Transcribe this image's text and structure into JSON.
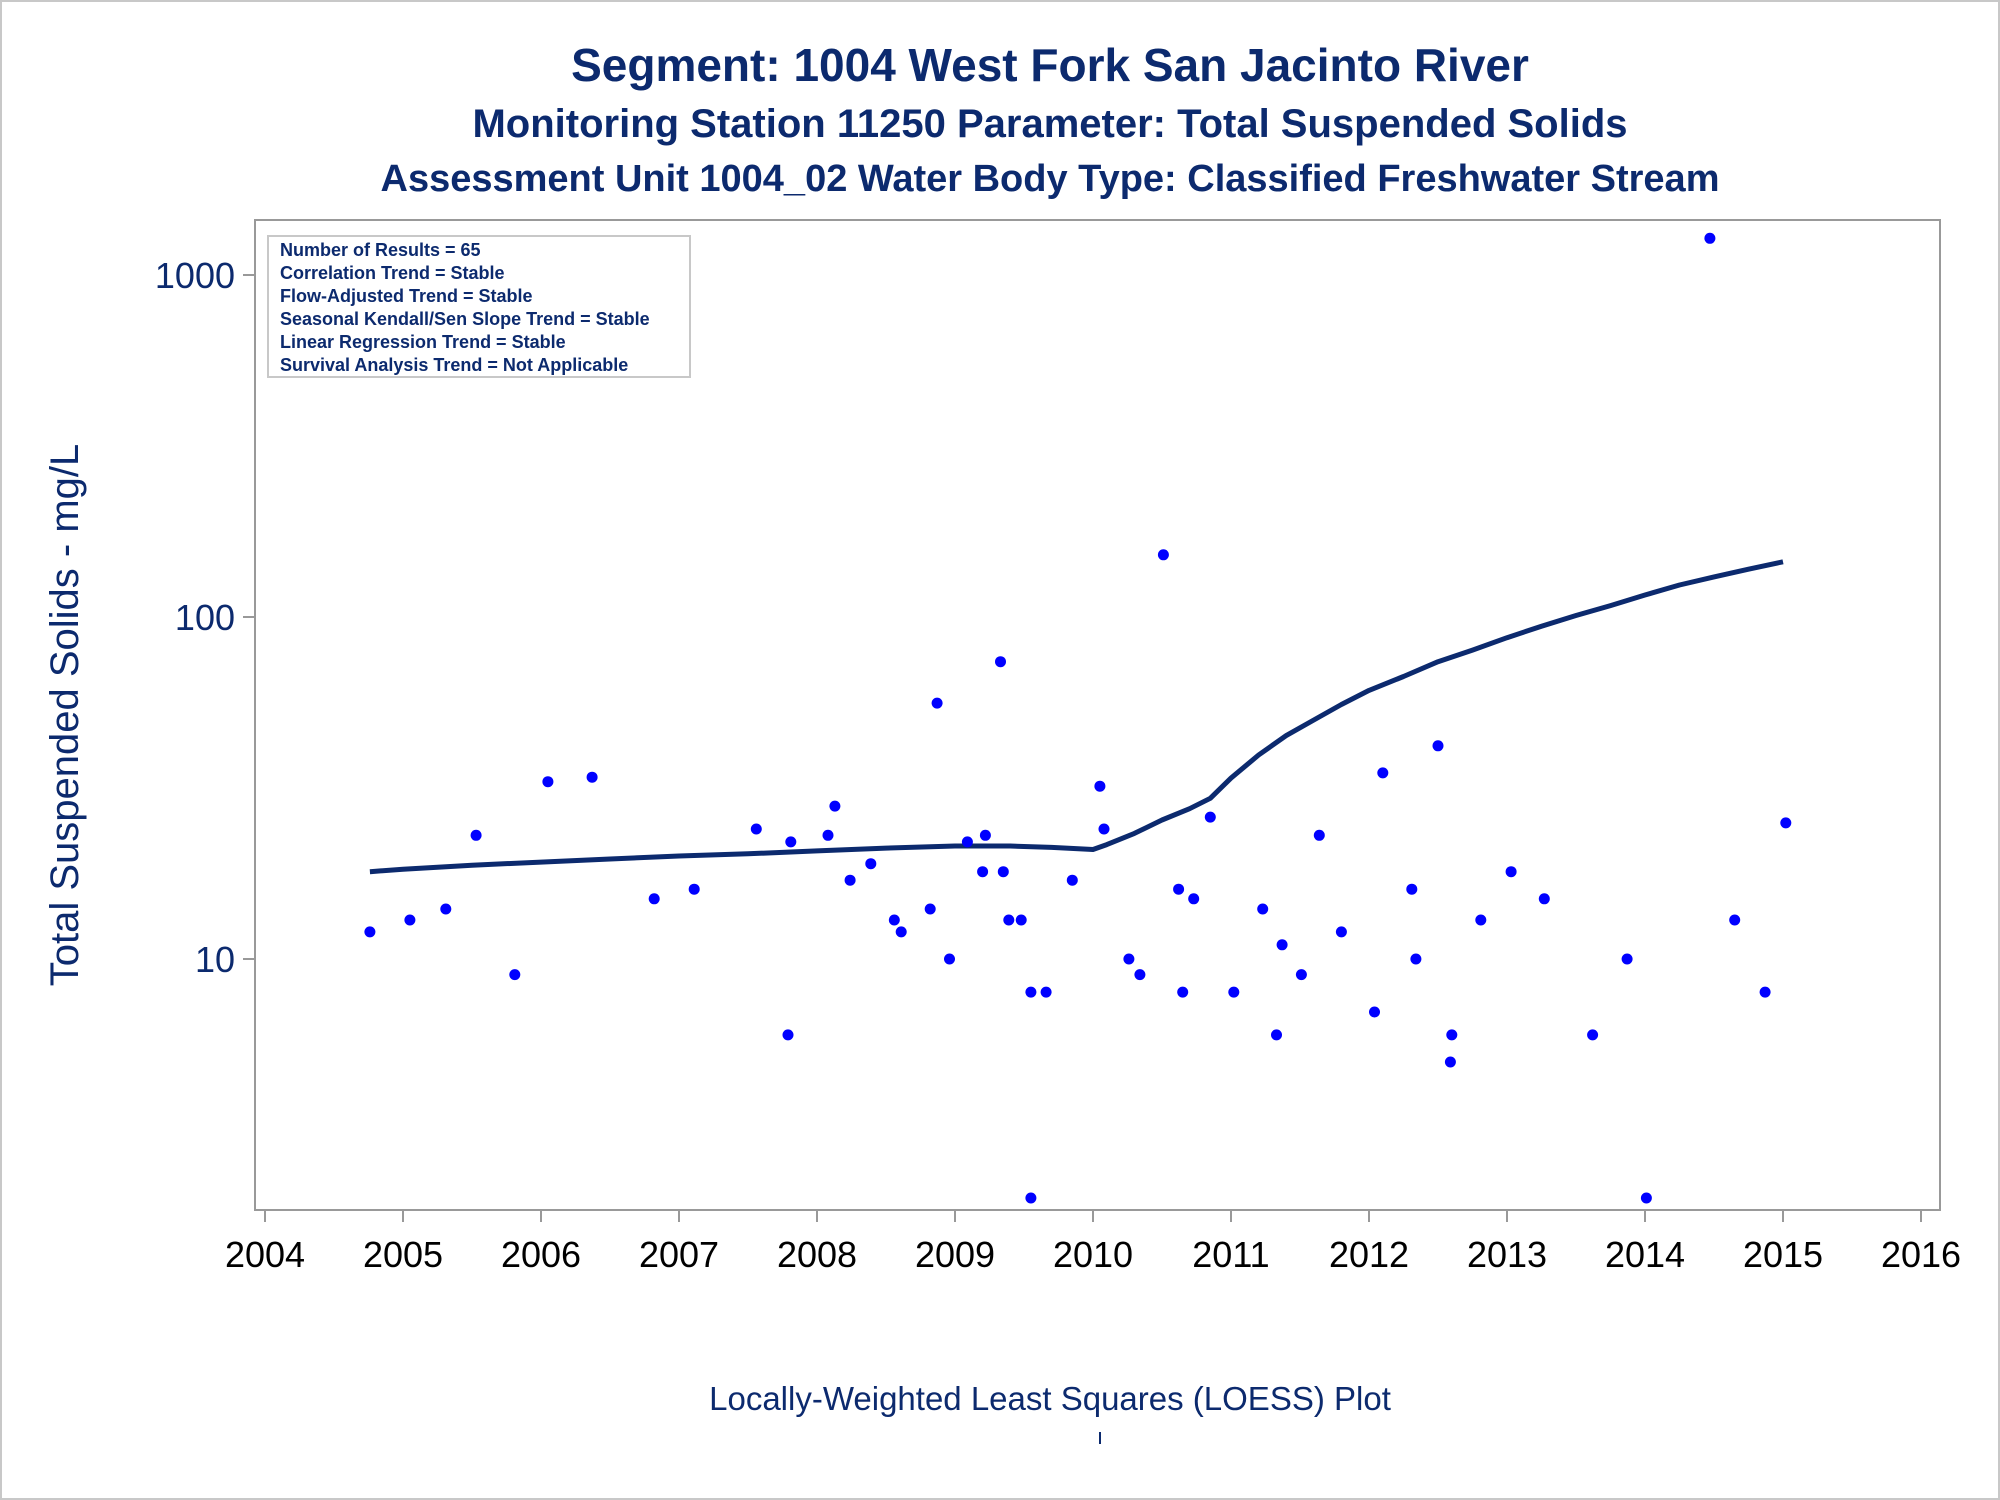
{
  "titles": {
    "line1": "Segment: 1004  West Fork San Jacinto River",
    "line2": "Monitoring Station 11250 Parameter: Total Suspended Solids",
    "line3": "Assessment Unit 1004_02   Water Body Type: Classified Freshwater Stream"
  },
  "footnote": "Locally-Weighted Least Squares (LOESS) Plot",
  "colors": {
    "text": "#0c2a6e",
    "points": "#0000ff",
    "loess": "#0c2a6e",
    "axis": "#999999"
  },
  "chart_data": {
    "type": "scatter",
    "title": "Segment: 1004  West Fork San Jacinto River",
    "xlabel": "",
    "ylabel": "Total Suspended Solids - mg/L",
    "yscale": "log",
    "xlim": [
      2004,
      2016
    ],
    "ylim": [
      2,
      1400
    ],
    "xticks": [
      "2004",
      "2005",
      "2006",
      "2007",
      "2008",
      "2009",
      "2010",
      "2011",
      "2012",
      "2013",
      "2014",
      "2015",
      "2016"
    ],
    "yticks": [
      {
        "value": 10,
        "label": "10"
      },
      {
        "value": 100,
        "label": "100"
      },
      {
        "value": 1000,
        "label": "1000"
      }
    ],
    "grid": false,
    "legend_box": {
      "placement": "top-left",
      "lines": [
        "Number of Results = 65",
        "Correlation Trend = Stable",
        "Flow-Adjusted Trend = Stable",
        "Seasonal Kendall/Sen Slope Trend = Stable",
        "Linear Regression Trend = Stable",
        "Survival Analysis Trend = Not Applicable"
      ]
    },
    "points": [
      {
        "x": 2004.76,
        "y": 12
      },
      {
        "x": 2005.05,
        "y": 13
      },
      {
        "x": 2005.31,
        "y": 14
      },
      {
        "x": 2005.53,
        "y": 23
      },
      {
        "x": 2005.81,
        "y": 9
      },
      {
        "x": 2006.05,
        "y": 33
      },
      {
        "x": 2006.37,
        "y": 34
      },
      {
        "x": 2006.82,
        "y": 15
      },
      {
        "x": 2007.11,
        "y": 16
      },
      {
        "x": 2007.56,
        "y": 24
      },
      {
        "x": 2007.79,
        "y": 6
      },
      {
        "x": 2007.81,
        "y": 22
      },
      {
        "x": 2008.08,
        "y": 23
      },
      {
        "x": 2008.13,
        "y": 28
      },
      {
        "x": 2008.24,
        "y": 17
      },
      {
        "x": 2008.39,
        "y": 19
      },
      {
        "x": 2008.56,
        "y": 13
      },
      {
        "x": 2008.61,
        "y": 12
      },
      {
        "x": 2008.82,
        "y": 14
      },
      {
        "x": 2008.87,
        "y": 56
      },
      {
        "x": 2008.96,
        "y": 10
      },
      {
        "x": 2009.09,
        "y": 22
      },
      {
        "x": 2009.2,
        "y": 18
      },
      {
        "x": 2009.22,
        "y": 23
      },
      {
        "x": 2009.33,
        "y": 74
      },
      {
        "x": 2009.35,
        "y": 18
      },
      {
        "x": 2009.39,
        "y": 13
      },
      {
        "x": 2009.48,
        "y": 13
      },
      {
        "x": 2009.55,
        "y": 8
      },
      {
        "x": 2009.55,
        "y": 2
      },
      {
        "x": 2009.66,
        "y": 8
      },
      {
        "x": 2009.85,
        "y": 17
      },
      {
        "x": 2010.05,
        "y": 32
      },
      {
        "x": 2010.08,
        "y": 24
      },
      {
        "x": 2010.26,
        "y": 10
      },
      {
        "x": 2010.34,
        "y": 9
      },
      {
        "x": 2010.51,
        "y": 152
      },
      {
        "x": 2010.62,
        "y": 16
      },
      {
        "x": 2010.65,
        "y": 8
      },
      {
        "x": 2010.73,
        "y": 15
      },
      {
        "x": 2010.85,
        "y": 26
      },
      {
        "x": 2011.02,
        "y": 8
      },
      {
        "x": 2011.23,
        "y": 14
      },
      {
        "x": 2011.33,
        "y": 6
      },
      {
        "x": 2011.37,
        "y": 11
      },
      {
        "x": 2011.51,
        "y": 9
      },
      {
        "x": 2011.64,
        "y": 23
      },
      {
        "x": 2011.8,
        "y": 12
      },
      {
        "x": 2012.04,
        "y": 7
      },
      {
        "x": 2012.1,
        "y": 35
      },
      {
        "x": 2012.31,
        "y": 16
      },
      {
        "x": 2012.34,
        "y": 10
      },
      {
        "x": 2012.5,
        "y": 42
      },
      {
        "x": 2012.6,
        "y": 6
      },
      {
        "x": 2012.59,
        "y": 5
      },
      {
        "x": 2012.81,
        "y": 13
      },
      {
        "x": 2013.03,
        "y": 18
      },
      {
        "x": 2013.27,
        "y": 15
      },
      {
        "x": 2013.62,
        "y": 6
      },
      {
        "x": 2013.87,
        "y": 10
      },
      {
        "x": 2014.01,
        "y": 2
      },
      {
        "x": 2014.47,
        "y": 1280
      },
      {
        "x": 2014.65,
        "y": 13
      },
      {
        "x": 2014.87,
        "y": 8
      },
      {
        "x": 2015.02,
        "y": 25
      }
    ],
    "loess": [
      {
        "x": 2004.76,
        "y": 18
      },
      {
        "x": 2005.0,
        "y": 18.3
      },
      {
        "x": 2005.5,
        "y": 18.8
      },
      {
        "x": 2006.0,
        "y": 19.2
      },
      {
        "x": 2006.5,
        "y": 19.6
      },
      {
        "x": 2007.0,
        "y": 20
      },
      {
        "x": 2007.5,
        "y": 20.3
      },
      {
        "x": 2008.0,
        "y": 20.7
      },
      {
        "x": 2008.5,
        "y": 21.1
      },
      {
        "x": 2009.0,
        "y": 21.4
      },
      {
        "x": 2009.4,
        "y": 21.4
      },
      {
        "x": 2009.7,
        "y": 21.2
      },
      {
        "x": 2010.0,
        "y": 20.9
      },
      {
        "x": 2010.1,
        "y": 21.6
      },
      {
        "x": 2010.3,
        "y": 23.3
      },
      {
        "x": 2010.5,
        "y": 25.5
      },
      {
        "x": 2010.7,
        "y": 27.5
      },
      {
        "x": 2010.85,
        "y": 29.5
      },
      {
        "x": 2011.0,
        "y": 33.8
      },
      {
        "x": 2011.2,
        "y": 39.5
      },
      {
        "x": 2011.4,
        "y": 45
      },
      {
        "x": 2011.6,
        "y": 50
      },
      {
        "x": 2011.8,
        "y": 55.5
      },
      {
        "x": 2012.0,
        "y": 61
      },
      {
        "x": 2012.25,
        "y": 67
      },
      {
        "x": 2012.5,
        "y": 74
      },
      {
        "x": 2012.75,
        "y": 80
      },
      {
        "x": 2013.0,
        "y": 87
      },
      {
        "x": 2013.25,
        "y": 94
      },
      {
        "x": 2013.5,
        "y": 101
      },
      {
        "x": 2013.75,
        "y": 108
      },
      {
        "x": 2014.0,
        "y": 116
      },
      {
        "x": 2014.25,
        "y": 124
      },
      {
        "x": 2014.5,
        "y": 131
      },
      {
        "x": 2014.75,
        "y": 138
      },
      {
        "x": 2015.0,
        "y": 145
      }
    ]
  }
}
